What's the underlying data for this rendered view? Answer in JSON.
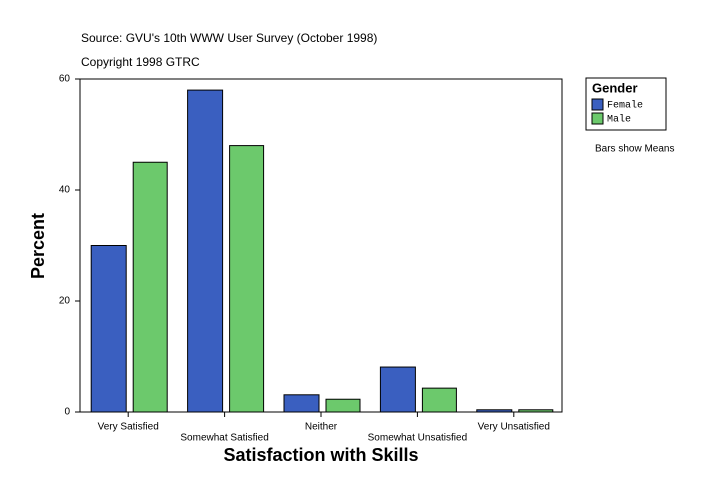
{
  "chart_data": {
    "type": "bar",
    "title": "Source: GVU's 10th WWW User Survey (October 1998)",
    "subtitle": "Copyright 1998 GTRC",
    "note": "Bars show Means",
    "x_label": "Satisfaction with Skills",
    "y_label": "Percent",
    "legend_title": "Gender",
    "categories": [
      "Very Satisfied",
      "Somewhat Satisfied",
      "Neither",
      "Somewhat Unsatisfied",
      "Very Unsatisfied"
    ],
    "series": [
      {
        "name": "Female",
        "color": "#3a5fc0",
        "values": [
          30,
          58,
          3.1,
          8.1,
          0.4
        ]
      },
      {
        "name": "Male",
        "color": "#6cc96c",
        "values": [
          45,
          48,
          2.3,
          4.3,
          0.4
        ]
      }
    ],
    "ylim": [
      0,
      60
    ],
    "yticks": [
      0,
      20,
      40,
      60
    ]
  }
}
